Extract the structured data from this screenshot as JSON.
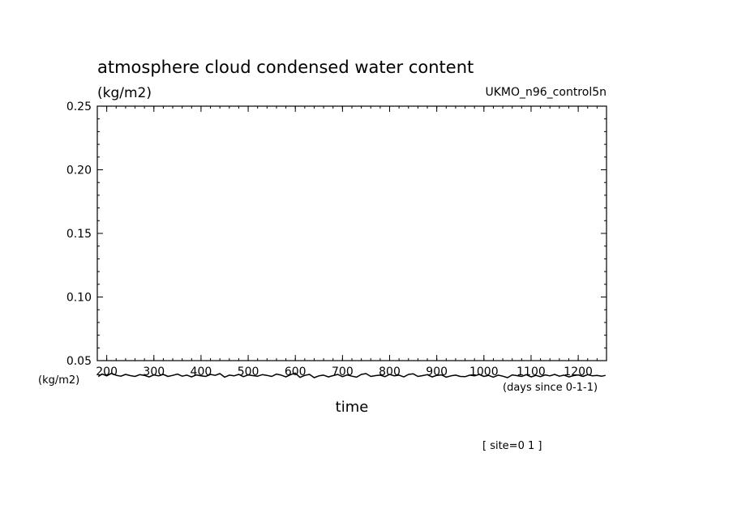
{
  "chart_data": {
    "type": "line",
    "title": "atmosphere cloud condensed water content",
    "units": "(kg/m2)",
    "run_label": "UKMO_n96_control5n",
    "xlabel": "time",
    "x_units": "(days since 0-1-1)",
    "y_units_left": "(kg/m2)",
    "footer": "[ site=0 1 ]",
    "xlim": [
      180,
      1260
    ],
    "ylim": [
      0.05,
      0.25
    ],
    "x_ticks": [
      200,
      300,
      400,
      500,
      600,
      700,
      800,
      900,
      1000,
      1100,
      1200
    ],
    "x_tick_labels": [
      "200",
      "300",
      "400",
      "500",
      "600",
      "700",
      "800",
      "900",
      "1000",
      "1100",
      "1200"
    ],
    "y_ticks": [
      0.05,
      0.1,
      0.15,
      0.2,
      0.25
    ],
    "y_tick_labels": [
      "0.05",
      "0.10",
      "0.15",
      "0.20",
      "0.25"
    ],
    "grid": false,
    "series": [
      {
        "color": "#000000",
        "x": [
          182,
          190,
          200,
          210,
          220,
          230,
          240,
          250,
          260,
          270,
          280,
          290,
          300,
          310,
          320,
          330,
          340,
          350,
          360,
          370,
          380,
          390,
          400,
          410,
          420,
          430,
          440,
          450,
          460,
          470,
          480,
          490,
          500,
          510,
          520,
          530,
          540,
          550,
          560,
          570,
          580,
          590,
          600,
          610,
          620,
          630,
          640,
          650,
          660,
          670,
          680,
          690,
          700,
          710,
          720,
          730,
          740,
          750,
          760,
          770,
          780,
          790,
          800,
          810,
          820,
          830,
          840,
          850,
          860,
          870,
          880,
          890,
          900,
          910,
          920,
          930,
          940,
          950,
          960,
          970,
          980,
          990,
          1000,
          1010,
          1020,
          1030,
          1040,
          1050,
          1060,
          1070,
          1080,
          1090,
          1100,
          1110,
          1120,
          1130,
          1140,
          1150,
          1160,
          1170,
          1180,
          1190,
          1200,
          1210,
          1220,
          1230,
          1240,
          1250,
          1258
        ],
        "y": [
          0.0375,
          0.0395,
          0.038,
          0.04,
          0.0385,
          0.0378,
          0.0392,
          0.0382,
          0.0376,
          0.039,
          0.0384,
          0.0372,
          0.0388,
          0.038,
          0.0392,
          0.0376,
          0.0384,
          0.0394,
          0.0378,
          0.0386,
          0.0372,
          0.0388,
          0.038,
          0.0376,
          0.0392,
          0.0384,
          0.0398,
          0.037,
          0.0386,
          0.038,
          0.0392,
          0.0374,
          0.0388,
          0.0382,
          0.0378,
          0.039,
          0.0384,
          0.0376,
          0.0394,
          0.0386,
          0.0372,
          0.039,
          0.0402,
          0.0368,
          0.0384,
          0.0392,
          0.0366,
          0.038,
          0.0386,
          0.0372,
          0.0382,
          0.0392,
          0.0374,
          0.0388,
          0.0378,
          0.037,
          0.0392,
          0.0398,
          0.0376,
          0.0382,
          0.0386,
          0.0374,
          0.0392,
          0.038,
          0.0386,
          0.0372,
          0.0392,
          0.0396,
          0.0376,
          0.0382,
          0.039,
          0.0372,
          0.0384,
          0.0388,
          0.037,
          0.038,
          0.0386,
          0.0376,
          0.0374,
          0.0386,
          0.038,
          0.0392,
          0.0376,
          0.0384,
          0.037,
          0.0386,
          0.0378,
          0.0366,
          0.0388,
          0.0382,
          0.0376,
          0.039,
          0.0372,
          0.0384,
          0.0374,
          0.0388,
          0.038,
          0.0392,
          0.0378,
          0.0386,
          0.0372,
          0.0382,
          0.0388,
          0.0376,
          0.039,
          0.038,
          0.0384,
          0.0378,
          0.0384
        ]
      }
    ]
  }
}
